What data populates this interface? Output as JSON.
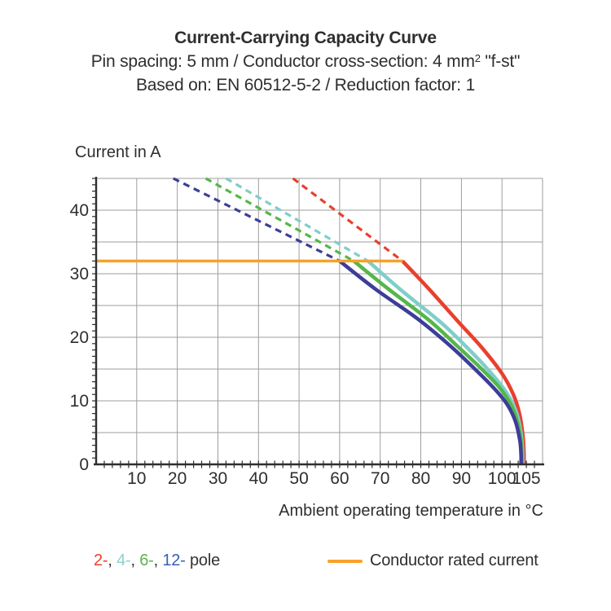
{
  "title": {
    "line1": "Current-Carrying Capacity Curve",
    "line2_prefix": "Pin spacing: 5 mm / Conductor cross-section: 4 mm",
    "line2_sup": "2",
    "line2_suffix": " \"f-st\"",
    "line3": "Based on: EN 60512-5-2 / Reduction factor: 1"
  },
  "legend": {
    "pole_parts": [
      {
        "text": "2-",
        "color": "#e8402d"
      },
      {
        "text": ", ",
        "color": "#333333"
      },
      {
        "text": "4-",
        "color": "#8fd0cc"
      },
      {
        "text": ", ",
        "color": "#333333"
      },
      {
        "text": "6-",
        "color": "#5cb34c"
      },
      {
        "text": ", ",
        "color": "#333333"
      },
      {
        "text": "12-",
        "color": "#3560b2"
      },
      {
        "text": " pole",
        "color": "#333333"
      }
    ],
    "rated_label": "Conductor rated current",
    "rated_color": "#f7a128"
  },
  "chart_data": {
    "type": "line",
    "title": "Current-Carrying Capacity Curve",
    "xlabel": "Ambient operating temperature in °C",
    "ylabel": "Current in A",
    "xlim": [
      0,
      110
    ],
    "ylim": [
      0,
      45
    ],
    "x_tick_labels": [
      10,
      20,
      30,
      40,
      50,
      60,
      70,
      80,
      90,
      100,
      105
    ],
    "y_tick_labels": [
      0,
      10,
      20,
      30,
      40
    ],
    "x_minor_tick_step": 2,
    "y_minor_tick_step": 1,
    "grid_x_step": 10,
    "grid_y_step": 5,
    "grid_color": "#9e9e9e",
    "axis_color": "#2e2e2e",
    "rated_current": {
      "value": 32,
      "x_start": 0,
      "x_end": 75.5,
      "color": "#f7a128",
      "label": "Conductor rated current"
    },
    "series": [
      {
        "name": "2-pole",
        "color": "#e8402d",
        "dashed": [
          [
            48.5,
            45
          ],
          [
            75.5,
            32
          ]
        ],
        "solid": [
          [
            75.5,
            32
          ],
          [
            82,
            27.6
          ],
          [
            89,
            22.6
          ],
          [
            95,
            18.4
          ],
          [
            100,
            14.3
          ],
          [
            102.8,
            11
          ],
          [
            104.3,
            8
          ],
          [
            105.1,
            4.8
          ],
          [
            105.4,
            2
          ],
          [
            105.4,
            0
          ]
        ]
      },
      {
        "name": "4-pole",
        "color": "#7fceca",
        "dashed": [
          [
            32,
            45
          ],
          [
            67,
            32
          ]
        ],
        "solid": [
          [
            67,
            32
          ],
          [
            75,
            27.5
          ],
          [
            85,
            22.3
          ],
          [
            92,
            18
          ],
          [
            97,
            14.6
          ],
          [
            101,
            11.4
          ],
          [
            103.2,
            8.8
          ],
          [
            104.4,
            6
          ],
          [
            105,
            3
          ],
          [
            105.1,
            0
          ]
        ]
      },
      {
        "name": "6-pole",
        "color": "#55b64a",
        "dashed": [
          [
            27,
            45
          ],
          [
            63.5,
            32
          ]
        ],
        "solid": [
          [
            63.5,
            32
          ],
          [
            72,
            27.6
          ],
          [
            82,
            22.7
          ],
          [
            89,
            18.6
          ],
          [
            95,
            15
          ],
          [
            99.5,
            12
          ],
          [
            102.3,
            9.3
          ],
          [
            103.8,
            6.7
          ],
          [
            104.7,
            3.6
          ],
          [
            104.9,
            0
          ]
        ]
      },
      {
        "name": "12-pole",
        "color": "#3d3d99",
        "dashed": [
          [
            19,
            45
          ],
          [
            60,
            32
          ]
        ],
        "solid": [
          [
            60,
            32
          ],
          [
            69,
            27.5
          ],
          [
            79,
            23
          ],
          [
            87,
            18.8
          ],
          [
            93,
            15.2
          ],
          [
            98,
            12
          ],
          [
            101.3,
            9.4
          ],
          [
            103.3,
            6.8
          ],
          [
            104.4,
            3.8
          ],
          [
            104.7,
            1.5
          ],
          [
            104.7,
            0
          ]
        ]
      }
    ]
  }
}
